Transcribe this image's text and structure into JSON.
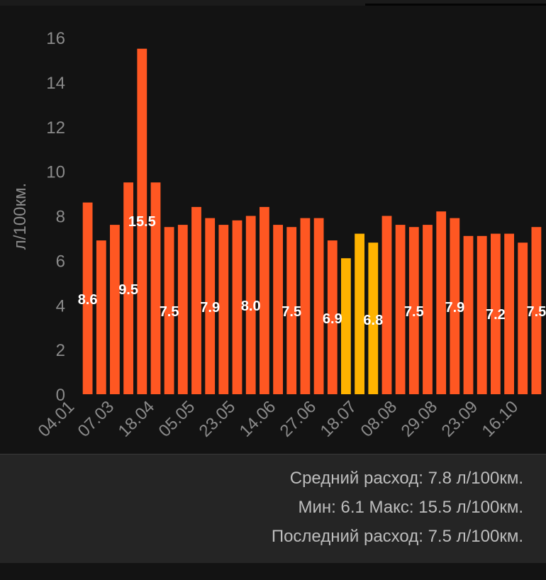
{
  "colors": {
    "bar": "#ff5722",
    "bar_highlight": "#ffb300",
    "axis_text": "#8a8a8a",
    "label_text": "#ffffff",
    "panel_bg": "#252525"
  },
  "chart_data": {
    "type": "bar",
    "ylabel": "л/100км.",
    "ylim": [
      0,
      16
    ],
    "yticks": [
      "0",
      "2",
      "4",
      "6",
      "8",
      "10",
      "12",
      "14",
      "16"
    ],
    "grid": false,
    "x_tick_labels": [
      "04.01",
      "07.03",
      "18.04",
      "05.05",
      "23.05",
      "14.06",
      "27.06",
      "18.07",
      "08.08",
      "29.08",
      "23.09",
      "16.10"
    ],
    "values": [
      8.6,
      6.9,
      7.6,
      9.5,
      15.5,
      9.5,
      7.5,
      7.6,
      8.4,
      7.9,
      7.6,
      7.8,
      8.0,
      8.4,
      7.6,
      7.5,
      7.9,
      7.9,
      6.9,
      6.1,
      7.2,
      6.8,
      8.0,
      7.6,
      7.5,
      7.6,
      8.2,
      7.9,
      7.1,
      7.1,
      7.2,
      7.2,
      6.8,
      7.5
    ],
    "highlight_bars": [
      19,
      20,
      21
    ],
    "data_labels": [
      {
        "bar": 0,
        "text": "8.6"
      },
      {
        "bar": 3,
        "text": "9.5"
      },
      {
        "bar": 4,
        "text": "15.5"
      },
      {
        "bar": 6,
        "text": "7.5"
      },
      {
        "bar": 9,
        "text": "7.9"
      },
      {
        "bar": 12,
        "text": "8.0"
      },
      {
        "bar": 15,
        "text": "7.5"
      },
      {
        "bar": 18,
        "text": "6.9"
      },
      {
        "bar": 21,
        "text": "6.8"
      },
      {
        "bar": 24,
        "text": "7.5"
      },
      {
        "bar": 27,
        "text": "7.9"
      },
      {
        "bar": 30,
        "text": "7.2"
      },
      {
        "bar": 33,
        "text": "7.5"
      }
    ]
  },
  "summary": {
    "average": "Средний расход: 7.8 л/100км.",
    "minmax": "Мин: 6.1 Макс: 15.5 л/100км.",
    "last": "Последний расход: 7.5 л/100км."
  }
}
